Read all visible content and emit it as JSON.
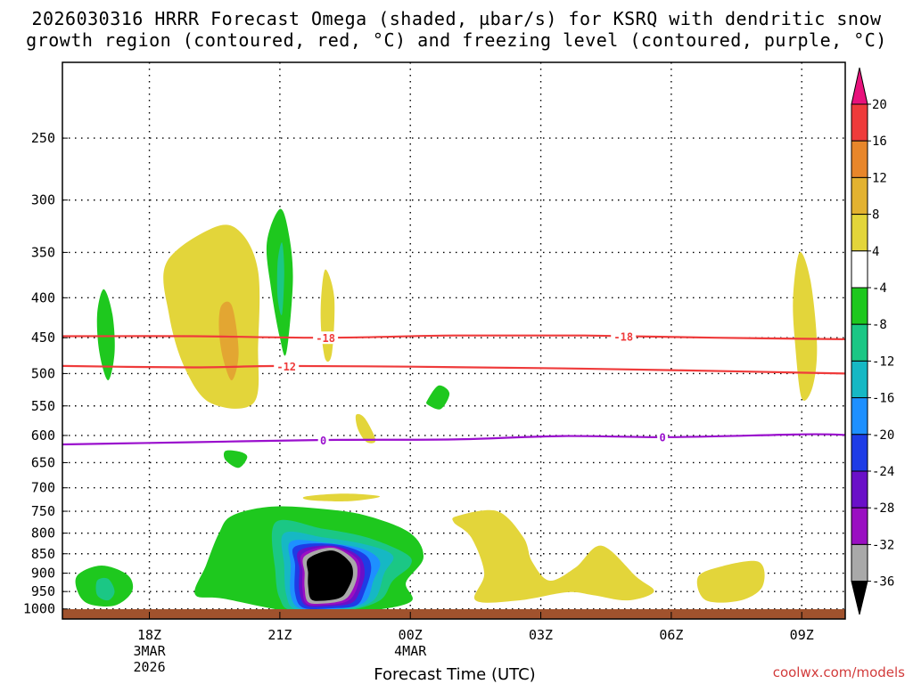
{
  "chart_data": {
    "type": "contour",
    "title_line1": "2026030316 HRRR Forecast Omega (shaded, µbar/s) for KSRQ with dendritic snow",
    "title_line2": "growth region (contoured, red, °C) and freezing level (contoured, purple, °C)",
    "xlabel": "Forecast Time (UTC)",
    "credit": "coolwx.com/models",
    "x_ticks": [
      {
        "hour": 18,
        "label": "18Z",
        "sub1": "3MAR",
        "sub2": "2026"
      },
      {
        "hour": 21,
        "label": "21Z",
        "sub1": "",
        "sub2": ""
      },
      {
        "hour": 24,
        "label": "00Z",
        "sub1": "4MAR",
        "sub2": ""
      },
      {
        "hour": 27,
        "label": "03Z",
        "sub1": "",
        "sub2": ""
      },
      {
        "hour": 30,
        "label": "06Z",
        "sub1": "",
        "sub2": ""
      },
      {
        "hour": 33,
        "label": "09Z",
        "sub1": "",
        "sub2": ""
      }
    ],
    "x_range_hours": [
      16,
      34
    ],
    "y_axis": "pressure (hPa), log scale, inverted",
    "y_range": [
      1030,
      200
    ],
    "y_ticks": [
      250,
      300,
      350,
      400,
      450,
      500,
      550,
      600,
      650,
      700,
      750,
      800,
      850,
      900,
      950,
      1000
    ],
    "colorbar": {
      "labels": [
        "20",
        "16",
        "12",
        "8",
        "4",
        "-4",
        "-8",
        "-12",
        "-16",
        "-20",
        "-24",
        "-28",
        "-32",
        "-36"
      ],
      "colors": [
        "#e8127c",
        "#ee3b3b",
        "#e8862a",
        "#e3b230",
        "#e3d53a",
        "#ffffff",
        "#1ec81e",
        "#1bc785",
        "#16b8c4",
        "#1e90ff",
        "#1e3ce6",
        "#6a10c8",
        "#9a0fc2",
        "#a9a9a9",
        "#000000"
      ]
    },
    "contours": [
      {
        "name": "dgz-minus18",
        "label": "-18",
        "color": "#ef3b3b",
        "points": [
          [
            16,
            448
          ],
          [
            19,
            448
          ],
          [
            22,
            450
          ],
          [
            25,
            447
          ],
          [
            28,
            447
          ],
          [
            31,
            450
          ],
          [
            34,
            452
          ]
        ]
      },
      {
        "name": "dgz-minus12",
        "label": "-12",
        "color": "#ef3b3b",
        "points": [
          [
            16,
            489
          ],
          [
            19,
            491
          ],
          [
            21,
            489
          ],
          [
            24,
            490
          ],
          [
            27,
            492
          ],
          [
            30,
            495
          ],
          [
            34,
            500
          ]
        ]
      },
      {
        "name": "freezing-0",
        "label": "0",
        "color": "#9a0fcd",
        "points": [
          [
            16,
            616
          ],
          [
            19,
            612
          ],
          [
            22,
            608
          ],
          [
            25,
            607
          ],
          [
            27.5,
            601
          ],
          [
            30,
            603
          ],
          [
            33,
            598
          ],
          [
            34,
            599
          ]
        ]
      }
    ],
    "contour_label_positions": [
      {
        "series": "dgz-minus18",
        "hour": 22.05
      },
      {
        "series": "dgz-minus18",
        "hour": 28.9
      },
      {
        "series": "dgz-minus12",
        "hour": 21.15
      },
      {
        "series": "freezing-0",
        "hour": 22.0
      },
      {
        "series": "freezing-0",
        "hour": 29.8
      }
    ],
    "omega_regions": [
      {
        "value": 4,
        "pts": [
          [
            18.4,
            360
          ],
          [
            19.5,
            325
          ],
          [
            20.1,
            330
          ],
          [
            20.5,
            370
          ],
          [
            20.5,
            460
          ],
          [
            20.4,
            545
          ],
          [
            19.4,
            545
          ],
          [
            18.8,
            490
          ],
          [
            18.45,
            420
          ]
        ]
      },
      {
        "value": 8,
        "pts": [
          [
            19.65,
            410
          ],
          [
            19.9,
            410
          ],
          [
            20.05,
            470
          ],
          [
            19.9,
            510
          ],
          [
            19.7,
            480
          ],
          [
            19.6,
            440
          ]
        ]
      },
      {
        "value": -4,
        "pts": [
          [
            16.95,
            390
          ],
          [
            17.15,
            420
          ],
          [
            17.2,
            470
          ],
          [
            17.05,
            510
          ],
          [
            16.85,
            470
          ],
          [
            16.8,
            420
          ]
        ]
      },
      {
        "value": -4,
        "pts": [
          [
            21.0,
            308
          ],
          [
            21.2,
            330
          ],
          [
            21.3,
            380
          ],
          [
            21.15,
            470
          ],
          [
            21.0,
            450
          ],
          [
            20.8,
            390
          ],
          [
            20.7,
            340
          ]
        ]
      },
      {
        "value": -8,
        "pts": [
          [
            21.05,
            340
          ],
          [
            21.1,
            370
          ],
          [
            21.05,
            420
          ],
          [
            20.95,
            400
          ],
          [
            20.95,
            360
          ]
        ]
      },
      {
        "value": 4,
        "pts": [
          [
            22.05,
            368
          ],
          [
            22.25,
            400
          ],
          [
            22.2,
            470
          ],
          [
            22.05,
            480
          ],
          [
            21.95,
            440
          ],
          [
            21.95,
            400
          ]
        ]
      },
      {
        "value": 4,
        "pts": [
          [
            22.75,
            565
          ],
          [
            22.95,
            570
          ],
          [
            23.2,
            608
          ],
          [
            23.0,
            612
          ],
          [
            22.8,
            590
          ]
        ]
      },
      {
        "value": -4,
        "pts": [
          [
            24.4,
            540
          ],
          [
            24.65,
            518
          ],
          [
            24.9,
            530
          ],
          [
            24.7,
            555
          ],
          [
            24.4,
            548
          ]
        ]
      },
      {
        "value": -4,
        "pts": [
          [
            19.75,
            628
          ],
          [
            20.1,
            630
          ],
          [
            20.25,
            640
          ],
          [
            20.05,
            660
          ],
          [
            19.75,
            645
          ]
        ]
      },
      {
        "value": 4,
        "pts": [
          [
            21.6,
            718
          ],
          [
            22.5,
            712
          ],
          [
            23.3,
            718
          ],
          [
            22.6,
            728
          ],
          [
            21.7,
            726
          ]
        ]
      },
      {
        "value": 4,
        "pts": [
          [
            25.1,
            760
          ],
          [
            26.0,
            750
          ],
          [
            26.6,
            810
          ],
          [
            26.8,
            870
          ],
          [
            27.2,
            920
          ],
          [
            27.8,
            885
          ],
          [
            28.4,
            830
          ],
          [
            29.2,
            910
          ],
          [
            29.6,
            950
          ],
          [
            29.0,
            975
          ],
          [
            28.2,
            960
          ],
          [
            27.6,
            952
          ],
          [
            26.5,
            975
          ],
          [
            25.5,
            975
          ],
          [
            25.7,
            900
          ],
          [
            25.4,
            810
          ],
          [
            25.0,
            775
          ]
        ]
      },
      {
        "value": 4,
        "pts": [
          [
            31.0,
            887
          ],
          [
            32.0,
            870
          ],
          [
            32.1,
            935
          ],
          [
            31.6,
            975
          ],
          [
            30.8,
            975
          ],
          [
            30.6,
            915
          ]
        ]
      },
      {
        "value": 4,
        "pts": [
          [
            32.95,
            350
          ],
          [
            33.2,
            380
          ],
          [
            33.35,
            460
          ],
          [
            33.25,
            520
          ],
          [
            33.0,
            538
          ],
          [
            32.85,
            460
          ],
          [
            32.8,
            400
          ]
        ]
      },
      {
        "value": -4,
        "pts": [
          [
            16.35,
            905
          ],
          [
            16.9,
            880
          ],
          [
            17.5,
            905
          ],
          [
            17.6,
            950
          ],
          [
            17.2,
            990
          ],
          [
            16.6,
            985
          ],
          [
            16.35,
            950
          ]
        ]
      },
      {
        "value": -8,
        "pts": [
          [
            16.8,
            920
          ],
          [
            17.05,
            915
          ],
          [
            17.2,
            950
          ],
          [
            17.05,
            975
          ],
          [
            16.8,
            960
          ]
        ]
      },
      {
        "value": -4,
        "pts": [
          [
            19.9,
            760
          ],
          [
            20.8,
            740
          ],
          [
            22.0,
            745
          ],
          [
            23.0,
            760
          ],
          [
            24.0,
            800
          ],
          [
            24.3,
            860
          ],
          [
            23.9,
            925
          ],
          [
            24.0,
            980
          ],
          [
            22.8,
            1008
          ],
          [
            21.3,
            1008
          ],
          [
            19.7,
            970
          ],
          [
            19.05,
            958
          ],
          [
            19.3,
            880
          ],
          [
            19.6,
            800
          ]
        ]
      },
      {
        "value": -8,
        "pts": [
          [
            20.9,
            775
          ],
          [
            22.0,
            790
          ],
          [
            23.0,
            810
          ],
          [
            23.9,
            850
          ],
          [
            24.0,
            880
          ],
          [
            23.6,
            920
          ],
          [
            23.3,
            975
          ],
          [
            22.5,
            1005
          ],
          [
            21.3,
            1005
          ],
          [
            21.0,
            970
          ],
          [
            20.9,
            900
          ]
        ]
      },
      {
        "value": -12,
        "pts": [
          [
            21.1,
            800
          ],
          [
            22.0,
            810
          ],
          [
            23.0,
            828
          ],
          [
            23.6,
            855
          ],
          [
            23.4,
            900
          ],
          [
            23.15,
            975
          ],
          [
            22.4,
            1003
          ],
          [
            21.4,
            1003
          ],
          [
            21.15,
            960
          ],
          [
            21.1,
            880
          ]
        ]
      },
      {
        "value": -16,
        "pts": [
          [
            21.25,
            820
          ],
          [
            22.0,
            822
          ],
          [
            22.9,
            838
          ],
          [
            23.3,
            870
          ],
          [
            23.15,
            920
          ],
          [
            22.95,
            980
          ],
          [
            22.3,
            1000
          ],
          [
            21.5,
            1000
          ],
          [
            21.25,
            960
          ],
          [
            21.25,
            880
          ]
        ]
      },
      {
        "value": -20,
        "pts": [
          [
            21.35,
            832
          ],
          [
            22.2,
            826
          ],
          [
            22.9,
            848
          ],
          [
            23.1,
            885
          ],
          [
            22.95,
            950
          ],
          [
            22.75,
            990
          ],
          [
            22.2,
            998
          ],
          [
            21.55,
            997
          ],
          [
            21.35,
            955
          ],
          [
            21.35,
            880
          ]
        ]
      },
      {
        "value": -24,
        "pts": [
          [
            21.45,
            842
          ],
          [
            22.2,
            830
          ],
          [
            22.8,
            855
          ],
          [
            22.95,
            900
          ],
          [
            22.8,
            960
          ],
          [
            22.6,
            985
          ],
          [
            22.1,
            992
          ],
          [
            21.6,
            990
          ],
          [
            21.45,
            950
          ],
          [
            21.45,
            890
          ]
        ]
      },
      {
        "value": -28,
        "pts": [
          [
            21.52,
            850
          ],
          [
            22.2,
            832
          ],
          [
            22.75,
            860
          ],
          [
            22.85,
            900
          ],
          [
            22.72,
            955
          ],
          [
            22.5,
            980
          ],
          [
            22.05,
            988
          ],
          [
            21.62,
            985
          ],
          [
            21.52,
            945
          ],
          [
            21.52,
            895
          ]
        ]
      },
      {
        "value": -32,
        "pts": [
          [
            21.57,
            856
          ],
          [
            22.2,
            835
          ],
          [
            22.7,
            865
          ],
          [
            22.78,
            905
          ],
          [
            22.65,
            950
          ],
          [
            22.45,
            975
          ],
          [
            22.0,
            984
          ],
          [
            21.65,
            980
          ],
          [
            21.57,
            940
          ],
          [
            21.57,
            900
          ]
        ]
      },
      {
        "value": -36,
        "pts": [
          [
            21.66,
            862
          ],
          [
            22.2,
            842
          ],
          [
            22.6,
            870
          ],
          [
            22.68,
            905
          ],
          [
            22.55,
            945
          ],
          [
            22.38,
            968
          ],
          [
            22.0,
            976
          ],
          [
            21.72,
            972
          ],
          [
            21.65,
            935
          ],
          [
            21.65,
            900
          ]
        ]
      }
    ]
  }
}
